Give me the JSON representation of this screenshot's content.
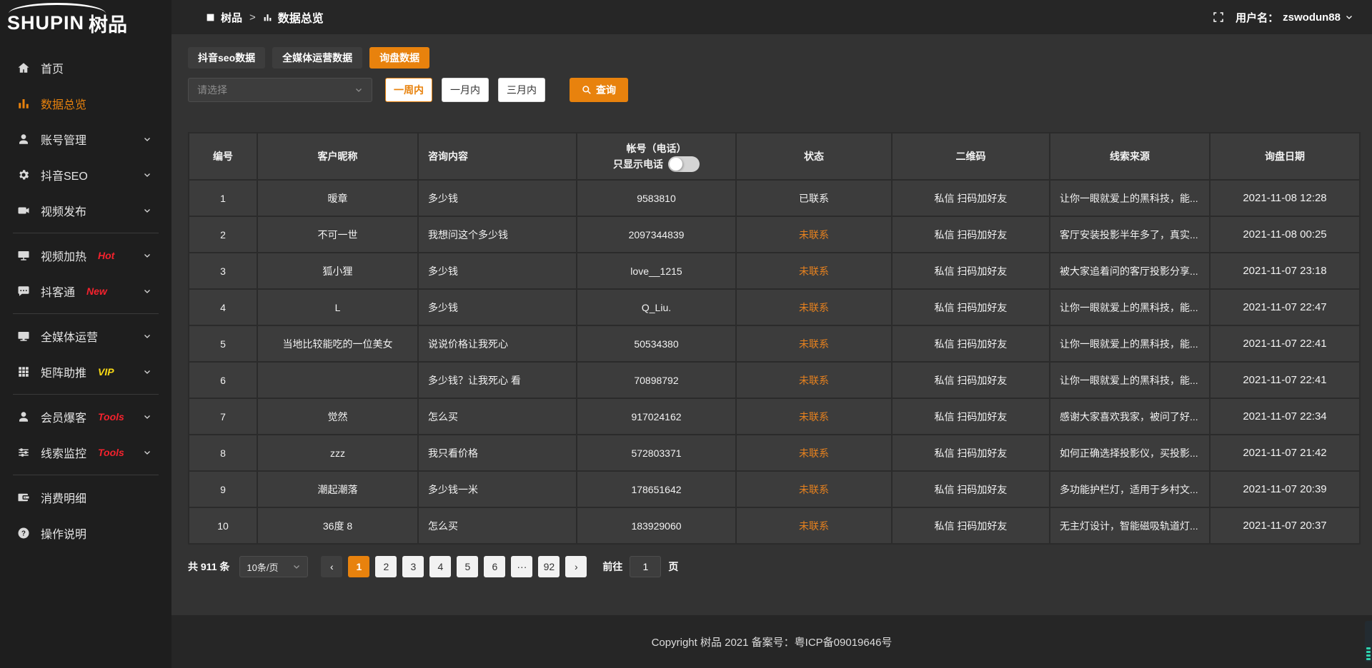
{
  "logo": {
    "en": "SHUPIN",
    "cn": "树品"
  },
  "header": {
    "breadcrumb_root": "树品",
    "separator": ">",
    "page_title": "数据总览",
    "username_label": "用户名：",
    "username": "zswodun88"
  },
  "sidebar": {
    "items": [
      {
        "key": "home",
        "icon": "home",
        "label": "首页",
        "chevron": false,
        "active": false
      },
      {
        "key": "data-overview",
        "icon": "bar-chart",
        "label": "数据总览",
        "chevron": false,
        "active": true
      },
      {
        "key": "account-management",
        "icon": "user",
        "label": "账号管理",
        "chevron": true
      },
      {
        "key": "douyin-seo",
        "icon": "gear",
        "label": "抖音SEO",
        "chevron": true
      },
      {
        "key": "video-publish",
        "icon": "video-camera",
        "label": "视频发布",
        "chevron": true,
        "divider_after": true
      },
      {
        "key": "video-heating",
        "icon": "screen",
        "label": "视频加热",
        "badge": "Hot",
        "badge_color": "#f5222d",
        "chevron": true
      },
      {
        "key": "douketong",
        "icon": "chat",
        "label": "抖客通",
        "badge": "New",
        "badge_color": "#f5222d",
        "chevron": true,
        "divider_after": true
      },
      {
        "key": "omnimedia-operation",
        "icon": "monitor",
        "label": "全媒体运营",
        "chevron": true
      },
      {
        "key": "matrix-boost",
        "icon": "grid",
        "label": "矩阵助推",
        "badge": "VIP",
        "badge_color": "#fadb14",
        "chevron": true,
        "divider_after": true
      },
      {
        "key": "member-burst",
        "icon": "user-solid",
        "label": "会员爆客",
        "badge": "Tools",
        "badge_color": "#f5222d",
        "chevron": true
      },
      {
        "key": "lead-monitoring",
        "icon": "sliders",
        "label": "线索监控",
        "badge": "Tools",
        "badge_color": "#f5222d",
        "chevron": true,
        "divider_after": true
      },
      {
        "key": "consumption-details",
        "icon": "wallet",
        "label": "消费明细",
        "chevron": false
      },
      {
        "key": "operation-guide",
        "icon": "question",
        "label": "操作说明",
        "chevron": false
      }
    ]
  },
  "tabs": [
    {
      "key": "douyin-seo-data",
      "label": "抖音seo数据",
      "active": false
    },
    {
      "key": "omnimedia-data",
      "label": "全媒体运营数据",
      "active": false
    },
    {
      "key": "inquiry-data",
      "label": "询盘数据",
      "active": true
    }
  ],
  "filters": {
    "select_placeholder": "请选择",
    "ranges": [
      {
        "key": "week",
        "label": "一周内",
        "active": true
      },
      {
        "key": "month",
        "label": "一月内",
        "active": false
      },
      {
        "key": "quarter",
        "label": "三月内",
        "active": false
      }
    ],
    "search_label": "查询"
  },
  "table": {
    "columns": {
      "index": "编号",
      "nickname": "客户昵称",
      "content": "咨询内容",
      "account": "帐号（电话）",
      "phone_toggle": "只显示电话",
      "status": "状态",
      "qrcode": "二维码",
      "source": "线索来源",
      "date": "询盘日期"
    },
    "rows": [
      {
        "index": "1",
        "nickname": "暧章",
        "content": "多少钱",
        "account": "9583810",
        "status": "已联系",
        "contacted": true,
        "qrcode": "私信 扫码加好友",
        "source": "让你一眼就爱上的黑科技，能...",
        "date": "2021-11-08 12:28"
      },
      {
        "index": "2",
        "nickname": "不可一世",
        "content": "我想问这个多少钱",
        "account": "2097344839",
        "status": "未联系",
        "contacted": false,
        "qrcode": "私信 扫码加好友",
        "source": "客厅安装投影半年多了，真实...",
        "date": "2021-11-08 00:25"
      },
      {
        "index": "3",
        "nickname": "狐小狸",
        "content": "多少钱",
        "account": "love__1215",
        "status": "未联系",
        "contacted": false,
        "qrcode": "私信 扫码加好友",
        "source": "被大家追着问的客厅投影分享...",
        "date": "2021-11-07 23:18"
      },
      {
        "index": "4",
        "nickname": "L",
        "content": "多少钱",
        "account": "Q_Liu.",
        "status": "未联系",
        "contacted": false,
        "qrcode": "私信 扫码加好友",
        "source": "让你一眼就爱上的黑科技，能...",
        "date": "2021-11-07 22:47"
      },
      {
        "index": "5",
        "nickname": "当地比较能吃的一位美女",
        "content": "说说价格让我死心",
        "account": "50534380",
        "status": "未联系",
        "contacted": false,
        "qrcode": "私信 扫码加好友",
        "source": "让你一眼就爱上的黑科技，能...",
        "date": "2021-11-07 22:41"
      },
      {
        "index": "6",
        "nickname": "",
        "content": "多少钱？让我死心 看",
        "account": "70898792",
        "status": "未联系",
        "contacted": false,
        "qrcode": "私信 扫码加好友",
        "source": "让你一眼就爱上的黑科技，能...",
        "date": "2021-11-07 22:41"
      },
      {
        "index": "7",
        "nickname": "觉然",
        "content": "怎么买",
        "account": "917024162",
        "status": "未联系",
        "contacted": false,
        "qrcode": "私信 扫码加好友",
        "source": "感谢大家喜欢我家，被问了好...",
        "date": "2021-11-07 22:34"
      },
      {
        "index": "8",
        "nickname": "zzz",
        "content": "我只看价格",
        "account": "572803371",
        "status": "未联系",
        "contacted": false,
        "qrcode": "私信 扫码加好友",
        "source": "如何正确选择投影仪，买投影...",
        "date": "2021-11-07 21:42"
      },
      {
        "index": "9",
        "nickname": "潮起潮落",
        "content": "多少钱一米",
        "account": "178651642",
        "status": "未联系",
        "contacted": false,
        "qrcode": "私信 扫码加好友",
        "source": "多功能护栏灯，适用于乡村文...",
        "date": "2021-11-07 20:39"
      },
      {
        "index": "10",
        "nickname": "36度 8",
        "content": "怎么买",
        "account": "183929060",
        "status": "未联系",
        "contacted": false,
        "qrcode": "私信 扫码加好友",
        "source": "无主灯设计，智能磁吸轨道灯...",
        "date": "2021-11-07 20:37"
      }
    ]
  },
  "pagination": {
    "total": "共 911 条",
    "page_size": "10条/页",
    "prev": "‹",
    "next": "›",
    "pages": [
      "1",
      "2",
      "3",
      "4",
      "5",
      "6",
      "···",
      "92"
    ],
    "active_page": "1",
    "goto_label": "前往",
    "goto_value": "1",
    "goto_unit": "页"
  },
  "footer": {
    "copyright": "Copyright 树品 2021 备案号：粤ICP备09019646号"
  },
  "colors": {
    "accent": "#e8820d",
    "orange_text": "#e8821e",
    "hot_badge": "#f5222d",
    "vip_badge": "#fadb14",
    "widget_teal": "#2fd3ad",
    "sidebar_bg": "#1e1e1e",
    "topbar_bg": "#262626",
    "content_bg": "#333333",
    "cell_bg": "#3c3c3c"
  }
}
